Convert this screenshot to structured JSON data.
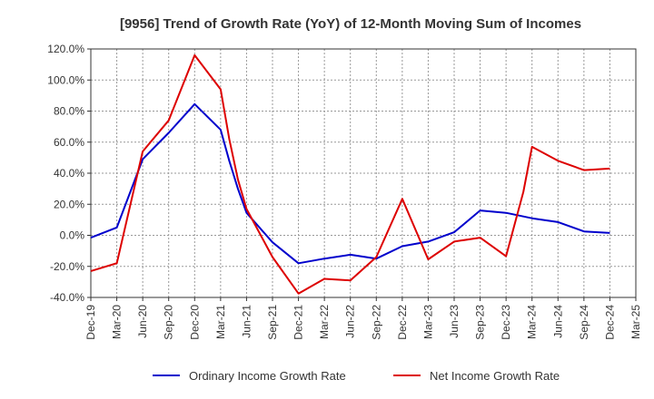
{
  "chart_data": {
    "type": "line",
    "title": "[9956]  Trend of Growth Rate (YoY) of 12-Month Moving Sum of Incomes",
    "xlabel": "",
    "ylabel": "",
    "x_ticks": [
      "Dec-19",
      "Mar-20",
      "Jun-20",
      "Sep-20",
      "Dec-20",
      "Mar-21",
      "Jun-21",
      "Sep-21",
      "Dec-21",
      "Mar-22",
      "Jun-22",
      "Sep-22",
      "Dec-22",
      "Mar-23",
      "Jun-23",
      "Sep-23",
      "Dec-23",
      "Mar-24",
      "Jun-24",
      "Sep-24",
      "Dec-24",
      "Mar-25"
    ],
    "y_ticks": [
      "120.0%",
      "100.0%",
      "80.0%",
      "60.0%",
      "40.0%",
      "20.0%",
      "0.0%",
      "-20.0%",
      "-40.0%"
    ],
    "ylim": [
      -40,
      120
    ],
    "y_unit": "%",
    "grid": true,
    "legend_position": "bottom",
    "series": [
      {
        "name": "Ordinary Income Growth Rate",
        "color": "#0000cc",
        "points": [
          {
            "x": "Dec-19",
            "y": -1.5
          },
          {
            "x": "Mar-20",
            "y": 5
          },
          {
            "x": "Jun-20",
            "y": 49
          },
          {
            "x": "Sep-20",
            "y": 66
          },
          {
            "x": "Dec-20",
            "y": 84.5
          },
          {
            "x": "Mar-21",
            "y": 68
          },
          {
            "x": "Apr-21",
            "y": 48
          },
          {
            "x": "May-21",
            "y": 30
          },
          {
            "x": "Jun-21",
            "y": 14.5
          },
          {
            "x": "Sep-21",
            "y": -4.5
          },
          {
            "x": "Dec-21",
            "y": -18
          },
          {
            "x": "Mar-22",
            "y": -15
          },
          {
            "x": "Jun-22",
            "y": -12.5
          },
          {
            "x": "Sep-22",
            "y": -15
          },
          {
            "x": "Dec-22",
            "y": -7
          },
          {
            "x": "Mar-23",
            "y": -4
          },
          {
            "x": "Jun-23",
            "y": 2
          },
          {
            "x": "Sep-23",
            "y": 16
          },
          {
            "x": "Dec-23",
            "y": 14.5
          },
          {
            "x": "Mar-24",
            "y": 11
          },
          {
            "x": "Jun-24",
            "y": 8.5
          },
          {
            "x": "Sep-24",
            "y": 2.5
          },
          {
            "x": "Dec-24",
            "y": 1.5
          }
        ]
      },
      {
        "name": "Net Income Growth Rate",
        "color": "#dd0000",
        "points": [
          {
            "x": "Dec-19",
            "y": -23
          },
          {
            "x": "Mar-20",
            "y": -18
          },
          {
            "x": "Jun-20",
            "y": 54
          },
          {
            "x": "Sep-20",
            "y": 74
          },
          {
            "x": "Dec-20",
            "y": 116
          },
          {
            "x": "Mar-21",
            "y": 94
          },
          {
            "x": "Apr-21",
            "y": 62
          },
          {
            "x": "May-21",
            "y": 36
          },
          {
            "x": "Jun-21",
            "y": 17
          },
          {
            "x": "Sep-21",
            "y": -14
          },
          {
            "x": "Dec-21",
            "y": -37.5
          },
          {
            "x": "Mar-22",
            "y": -28
          },
          {
            "x": "Jun-22",
            "y": -29
          },
          {
            "x": "Sep-22",
            "y": -14
          },
          {
            "x": "Dec-22",
            "y": 23.5
          },
          {
            "x": "Mar-23",
            "y": -15.5
          },
          {
            "x": "Jun-23",
            "y": -4
          },
          {
            "x": "Sep-23",
            "y": -1.5
          },
          {
            "x": "Dec-23",
            "y": -13.5
          },
          {
            "x": "Feb-24",
            "y": 28
          },
          {
            "x": "Mar-24",
            "y": 57
          },
          {
            "x": "Jun-24",
            "y": 48
          },
          {
            "x": "Sep-24",
            "y": 42
          },
          {
            "x": "Dec-24",
            "y": 43
          }
        ]
      }
    ]
  }
}
